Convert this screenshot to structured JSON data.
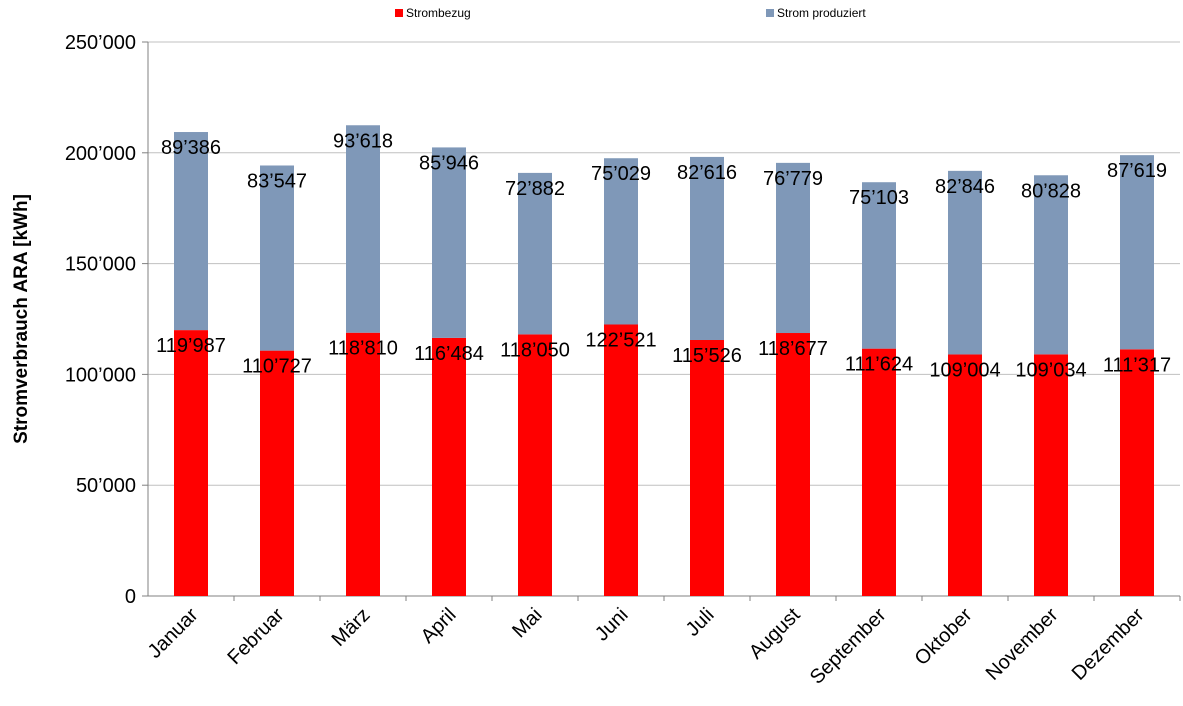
{
  "chart_data": {
    "type": "bar",
    "stacked": true,
    "categories": [
      "Januar",
      "Februar",
      "März",
      "April",
      "Mai",
      "Juni",
      "Juli",
      "August",
      "September",
      "Oktober",
      "November",
      "Dezember"
    ],
    "series": [
      {
        "name": "Strombezug",
        "color": "#ff0000",
        "values": [
          119987,
          110727,
          118810,
          116484,
          118050,
          122521,
          115526,
          118677,
          111624,
          109004,
          109034,
          111317
        ],
        "labels": [
          "119’987",
          "110’727",
          "118’810",
          "116’484",
          "118’050",
          "122’521",
          "115’526",
          "118’677",
          "111’624",
          "109’004",
          "109’034",
          "111’317"
        ]
      },
      {
        "name": "Strom produziert",
        "color": "#7f98b8",
        "values": [
          89386,
          83547,
          93618,
          85946,
          72882,
          75029,
          82616,
          76779,
          75103,
          82846,
          80828,
          87619
        ],
        "labels": [
          "89’386",
          "83’547",
          "93’618",
          "85’946",
          "72’882",
          "75’029",
          "82’616",
          "76’779",
          "75’103",
          "82’846",
          "80’828",
          "87’619"
        ]
      }
    ],
    "ylabel": "Stromverbrauch ARA [kWh]",
    "xlabel": "",
    "title": "",
    "ylim": [
      0,
      250000
    ],
    "yticks": [
      0,
      50000,
      100000,
      150000,
      200000,
      250000
    ],
    "ytick_labels": [
      "0",
      "50’000",
      "100’000",
      "150’000",
      "200’000",
      "250’000"
    ],
    "grid": true,
    "legend_position": "top"
  }
}
